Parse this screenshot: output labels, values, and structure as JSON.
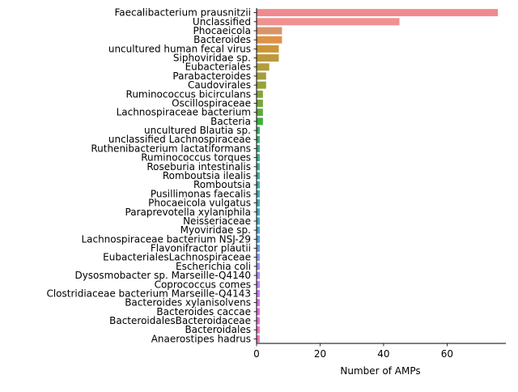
{
  "chart_data": {
    "type": "bar",
    "orientation": "horizontal",
    "xlabel": "Number of AMPs",
    "ylabel": "",
    "title": "",
    "xlim": [
      0,
      78.5
    ],
    "xticks": [
      0,
      20,
      40,
      60
    ],
    "grid": false,
    "legend": "none",
    "categories": [
      "Faecalibacterium prausnitzii",
      "Unclassified",
      "Phocaeicola",
      "Bacteroides",
      "uncultured human fecal virus",
      "Siphoviridae sp.",
      "Eubacteriales",
      "Parabacteroides",
      "Caudovirales",
      "Ruminococcus bicirculans",
      "Oscillospiraceae",
      "Lachnospiraceae bacterium",
      "Bacteria",
      "uncultured Blautia sp.",
      "unclassified Lachnospiraceae",
      "Ruthenibacterium lactatiformans",
      "Ruminococcus torques",
      "Roseburia intestinalis",
      "Romboutsia ilealis",
      "Romboutsia",
      "Pusillimonas faecalis",
      "Phocaeicola vulgatus",
      "Paraprevotella xylaniphila",
      "Neisseriaceae",
      "Myoviridae sp.",
      "Lachnospiraceae bacterium NSJ-29",
      "Flavonifractor plautii",
      "EubacterialesLachnospiraceae",
      "Escherichia coli",
      "Dysosmobacter sp. Marseille-Q4140",
      "Coprococcus comes",
      "Clostridiaceae bacterium Marseille-Q4143",
      "Bacteroides xylanisolvens",
      "Bacteroides caccae",
      "BacteroidalesBacteroidaceae",
      "Bacteroidales",
      "Anaerostipes hadrus"
    ],
    "values": [
      76,
      45,
      8,
      8,
      7,
      7,
      4,
      3,
      3,
      2,
      2,
      2,
      2,
      1,
      1,
      1,
      1,
      1,
      1,
      1,
      1,
      1,
      1,
      1,
      1,
      1,
      1,
      1,
      1,
      1,
      1,
      1,
      1,
      1,
      1,
      1,
      1
    ],
    "colors": [
      "#f08a8f",
      "#ef9190",
      "#d9956a",
      "#de9247",
      "#cb9538",
      "#bc9a3b",
      "#b09d3c",
      "#a29e3b",
      "#96a13a",
      "#86a33b",
      "#74a73b",
      "#5daa3c",
      "#3eae3e",
      "#34ad5a",
      "#37ad6d",
      "#38ad7a",
      "#39ac86",
      "#3aab90",
      "#3aab99",
      "#3baaa2",
      "#3ba9ab",
      "#3ca9b5",
      "#3da8bf",
      "#3fa6c9",
      "#43a4d4",
      "#4aa1dd",
      "#659de5",
      "#8297ea",
      "#958fee",
      "#a686ef",
      "#b57ef0",
      "#c377ee",
      "#cf70e8",
      "#da6ddd",
      "#e36ed0",
      "#ea72c2",
      "#ed76b4"
    ]
  }
}
